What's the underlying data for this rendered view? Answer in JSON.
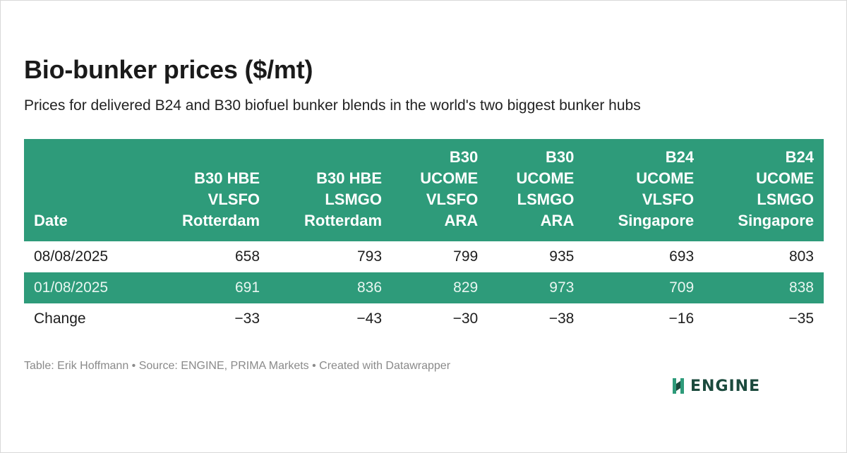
{
  "title": "Bio-bunker prices ($/mt)",
  "subtitle": "Prices for delivered B24 and B30 biofuel bunker blends in the world's two biggest bunker hubs",
  "footer": "Table: Erik Hoffmann • Source: ENGINE, PRIMA Markets • Created with Datawrapper",
  "logo": {
    "text": "ENGINE",
    "icon": "engine-logo-icon"
  },
  "colors": {
    "header_bg": "#2e9b7a",
    "band_bg": "#2e9b7a",
    "logo": "#1b4a3d"
  },
  "chart_data": {
    "type": "table",
    "columns": [
      {
        "key": "date",
        "lines": [
          "Date"
        ]
      },
      {
        "key": "b30_hbe_vlsfo_rotterdam",
        "lines": [
          "B30 HBE",
          "VLSFO",
          "Rotterdam"
        ]
      },
      {
        "key": "b30_hbe_lsmgo_rotterdam",
        "lines": [
          "B30 HBE",
          "LSMGO",
          "Rotterdam"
        ]
      },
      {
        "key": "b30_ucome_vlsfo_ara",
        "lines": [
          "B30",
          "UCOME",
          "VLSFO",
          "ARA"
        ]
      },
      {
        "key": "b30_ucome_lsmgo_ara",
        "lines": [
          "B30",
          "UCOME",
          "LSMGO",
          "ARA"
        ]
      },
      {
        "key": "b24_ucome_vlsfo_singapore",
        "lines": [
          "B24",
          "UCOME",
          "VLSFO",
          "Singapore"
        ]
      },
      {
        "key": "b24_ucome_lsmgo_singapore",
        "lines": [
          "B24",
          "UCOME",
          "LSMGO",
          "Singapore"
        ]
      }
    ],
    "rows": [
      [
        "08/08/2025",
        "658",
        "793",
        "799",
        "935",
        "693",
        "803"
      ],
      [
        "01/08/2025",
        "691",
        "836",
        "829",
        "973",
        "709",
        "838"
      ],
      [
        "Change",
        "−33",
        "−43",
        "−30",
        "−38",
        "−16",
        "−35"
      ]
    ]
  }
}
